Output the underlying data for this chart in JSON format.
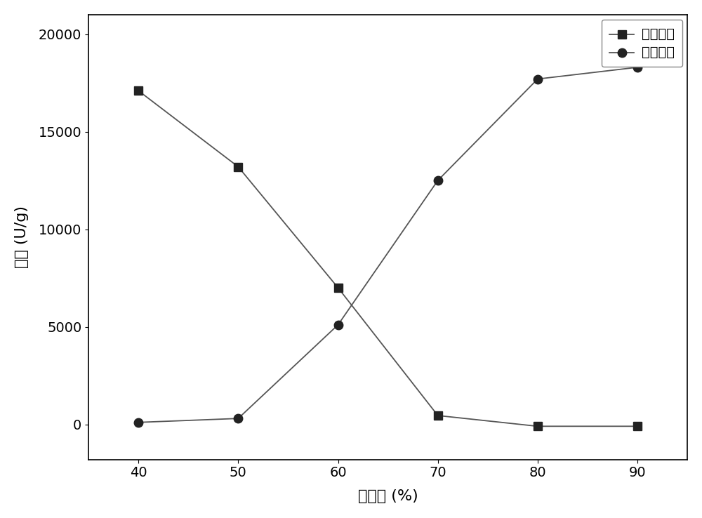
{
  "x": [
    40,
    50,
    60,
    70,
    80,
    90
  ],
  "supernatant_y": [
    17100,
    13200,
    7000,
    450,
    -100,
    -100
  ],
  "precipitate_y": [
    100,
    300,
    5100,
    12500,
    17700,
    18300
  ],
  "xlabel": "饱和度 (%)",
  "ylabel": "酶活 (U/g)",
  "legend_supernatant": "上清酶活",
  "legend_precipitate": "沉淀酶活",
  "xlim": [
    35,
    95
  ],
  "ylim": [
    -1800,
    21000
  ],
  "yticks": [
    0,
    5000,
    10000,
    15000,
    20000
  ],
  "xticks": [
    40,
    50,
    60,
    70,
    80,
    90
  ],
  "line_color": "#555555",
  "marker_color": "#222222",
  "background_color": "#ffffff",
  "label_fontsize": 16,
  "tick_fontsize": 14,
  "legend_fontsize": 14
}
